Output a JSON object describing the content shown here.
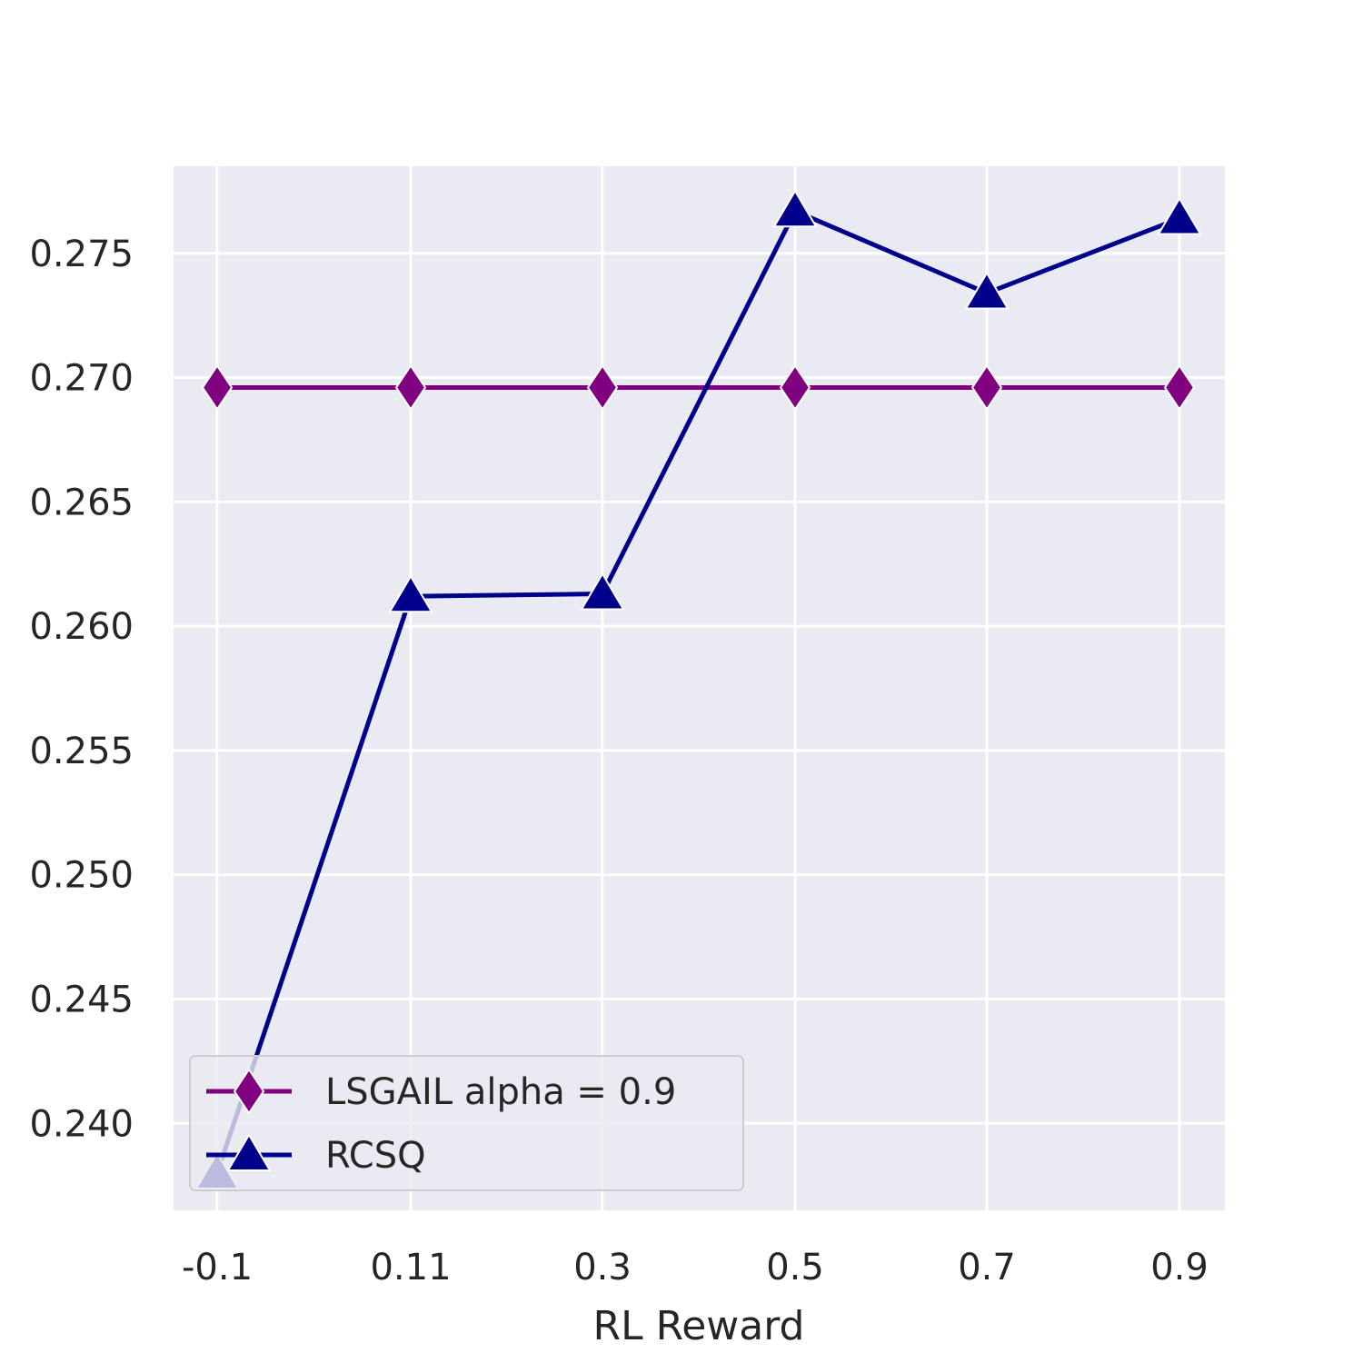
{
  "chart_data": {
    "type": "line",
    "title": "",
    "xlabel": "RL Reward",
    "ylabel": "",
    "categories": [
      "-0.1",
      "0.11",
      "0.3",
      "0.5",
      "0.7",
      "0.9"
    ],
    "ylim": [
      0.2365,
      0.2785
    ],
    "yticks": [
      "0.240",
      "0.245",
      "0.250",
      "0.255",
      "0.260",
      "0.265",
      "0.270",
      "0.275"
    ],
    "grid": true,
    "legend_position": "lower-left",
    "series": [
      {
        "name": "LSGAIL alpha = 0.9",
        "color": "#800080",
        "marker": "diamond",
        "values": [
          0.2696,
          0.2696,
          0.2696,
          0.2696,
          0.2696,
          0.2696
        ]
      },
      {
        "name": "RCSQ",
        "color": "#00008b",
        "marker": "triangle",
        "values": [
          0.238,
          0.2612,
          0.2613,
          0.2767,
          0.2734,
          0.2764
        ]
      }
    ]
  }
}
